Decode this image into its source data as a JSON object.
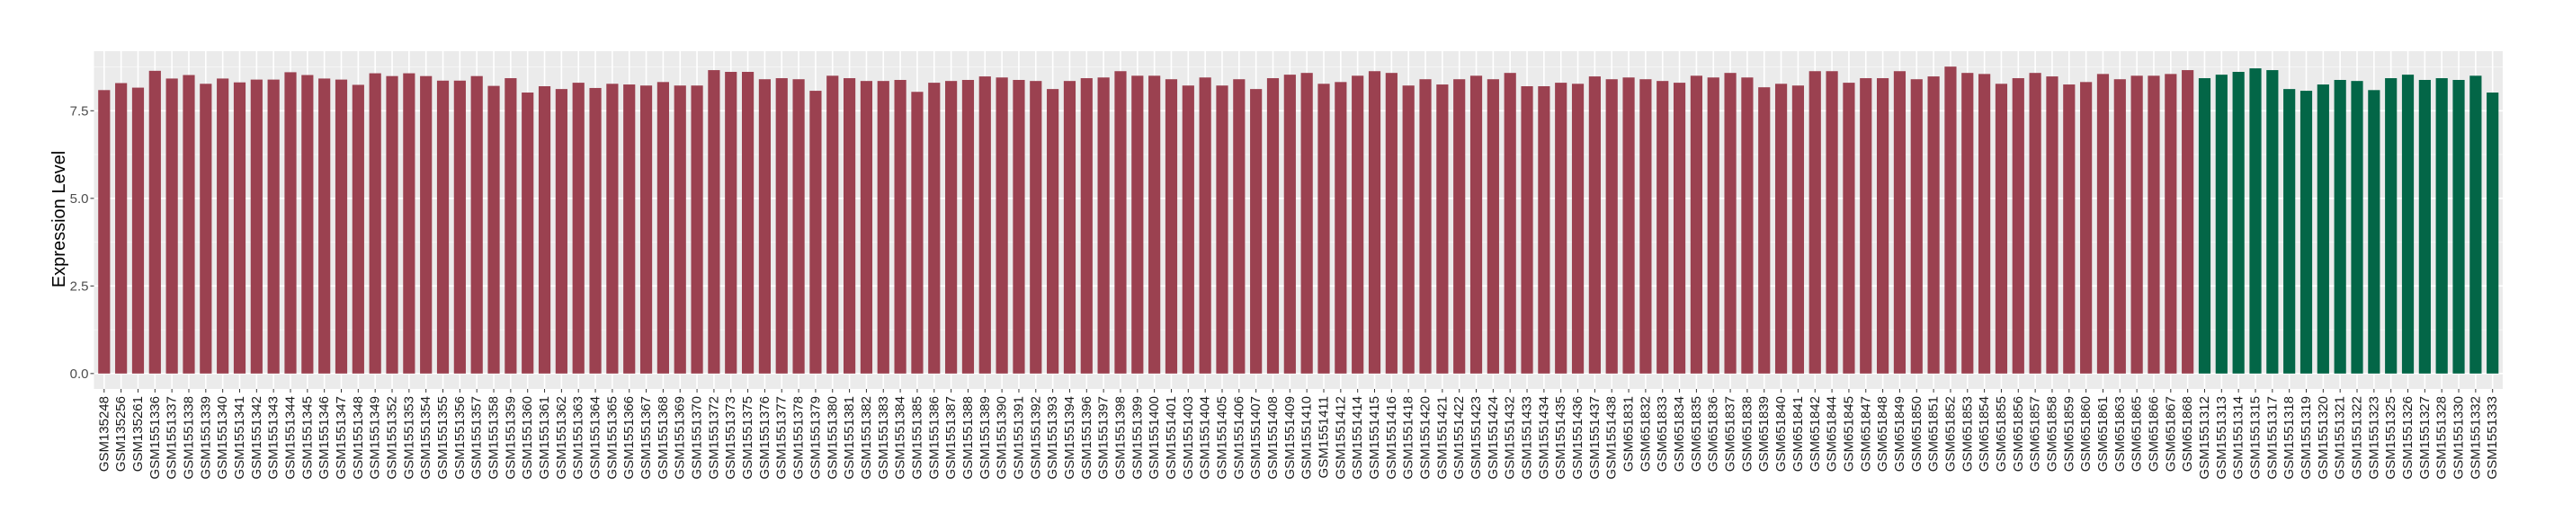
{
  "chart_data": {
    "type": "bar",
    "title": "",
    "xlabel": "",
    "ylabel": "Expression Level",
    "ylim": [
      -0.44,
      9.2
    ],
    "yticks": [
      "0.0",
      "2.5",
      "5.0",
      "7.5"
    ],
    "ytick_values": [
      0,
      2.5,
      5,
      7.5
    ],
    "grid": true,
    "legend": "none",
    "fill_colors": [
      "#9b4150",
      "#036647"
    ],
    "panel_background": "#ebebeb",
    "categories": [
      "GSM135248",
      "GSM135256",
      "GSM135261",
      "GSM1551336",
      "GSM1551337",
      "GSM1551338",
      "GSM1551339",
      "GSM1551340",
      "GSM1551341",
      "GSM1551342",
      "GSM1551343",
      "GSM1551344",
      "GSM1551345",
      "GSM1551346",
      "GSM1551347",
      "GSM1551348",
      "GSM1551349",
      "GSM1551352",
      "GSM1551353",
      "GSM1551354",
      "GSM1551355",
      "GSM1551356",
      "GSM1551357",
      "GSM1551358",
      "GSM1551359",
      "GSM1551360",
      "GSM1551361",
      "GSM1551362",
      "GSM1551363",
      "GSM1551364",
      "GSM1551365",
      "GSM1551366",
      "GSM1551367",
      "GSM1551368",
      "GSM1551369",
      "GSM1551370",
      "GSM1551372",
      "GSM1551373",
      "GSM1551375",
      "GSM1551376",
      "GSM1551377",
      "GSM1551378",
      "GSM1551379",
      "GSM1551380",
      "GSM1551381",
      "GSM1551382",
      "GSM1551383",
      "GSM1551384",
      "GSM1551385",
      "GSM1551386",
      "GSM1551387",
      "GSM1551388",
      "GSM1551389",
      "GSM1551390",
      "GSM1551391",
      "GSM1551392",
      "GSM1551393",
      "GSM1551394",
      "GSM1551396",
      "GSM1551397",
      "GSM1551398",
      "GSM1551399",
      "GSM1551400",
      "GSM1551401",
      "GSM1551403",
      "GSM1551404",
      "GSM1551405",
      "GSM1551406",
      "GSM1551407",
      "GSM1551408",
      "GSM1551409",
      "GSM1551410",
      "GSM1551411",
      "GSM1551412",
      "GSM1551414",
      "GSM1551415",
      "GSM1551416",
      "GSM1551418",
      "GSM1551420",
      "GSM1551421",
      "GSM1551422",
      "GSM1551423",
      "GSM1551424",
      "GSM1551432",
      "GSM1551433",
      "GSM1551434",
      "GSM1551435",
      "GSM1551436",
      "GSM1551437",
      "GSM1551438",
      "GSM651831",
      "GSM651832",
      "GSM651833",
      "GSM651834",
      "GSM651835",
      "GSM651836",
      "GSM651837",
      "GSM651838",
      "GSM651839",
      "GSM651840",
      "GSM651841",
      "GSM651842",
      "GSM651844",
      "GSM651845",
      "GSM651847",
      "GSM651848",
      "GSM651849",
      "GSM651850",
      "GSM651851",
      "GSM651852",
      "GSM651853",
      "GSM651854",
      "GSM651855",
      "GSM651856",
      "GSM651857",
      "GSM651858",
      "GSM651859",
      "GSM651860",
      "GSM651861",
      "GSM651863",
      "GSM651865",
      "GSM651866",
      "GSM651867",
      "GSM651868",
      "GSM1551312",
      "GSM1551313",
      "GSM1551314",
      "GSM1551315",
      "GSM1551317",
      "GSM1551318",
      "GSM1551319",
      "GSM1551320",
      "GSM1551321",
      "GSM1551322",
      "GSM1551323",
      "GSM1551325",
      "GSM1551326",
      "GSM1551327",
      "GSM1551328",
      "GSM1551330",
      "GSM1551332",
      "GSM1551333"
    ],
    "values": [
      8.09,
      8.29,
      8.16,
      8.64,
      8.42,
      8.52,
      8.27,
      8.42,
      8.31,
      8.39,
      8.39,
      8.6,
      8.52,
      8.42,
      8.39,
      8.24,
      8.57,
      8.49,
      8.57,
      8.49,
      8.36,
      8.36,
      8.49,
      8.21,
      8.43,
      8.02,
      8.2,
      8.12,
      8.3,
      8.15,
      8.27,
      8.25,
      8.22,
      8.32,
      8.22,
      8.22,
      8.66,
      8.61,
      8.61,
      8.4,
      8.43,
      8.4,
      8.07,
      8.5,
      8.43,
      8.35,
      8.35,
      8.38,
      8.04,
      8.3,
      8.35,
      8.38,
      8.48,
      8.45,
      8.38,
      8.35,
      8.12,
      8.35,
      8.43,
      8.45,
      8.63,
      8.5,
      8.5,
      8.4,
      8.22,
      8.45,
      8.22,
      8.4,
      8.12,
      8.43,
      8.53,
      8.58,
      8.27,
      8.32,
      8.5,
      8.63,
      8.58,
      8.22,
      8.4,
      8.25,
      8.4,
      8.5,
      8.4,
      8.58,
      8.2,
      8.2,
      8.3,
      8.27,
      8.48,
      8.4,
      8.45,
      8.4,
      8.35,
      8.3,
      8.5,
      8.45,
      8.58,
      8.45,
      8.17,
      8.27,
      8.22,
      8.63,
      8.63,
      8.3,
      8.43,
      8.43,
      8.63,
      8.4,
      8.48,
      8.76,
      8.58,
      8.55,
      8.27,
      8.43,
      8.58,
      8.48,
      8.25,
      8.32,
      8.55,
      8.4,
      8.5,
      8.5,
      8.55,
      8.66,
      8.43,
      8.53,
      8.61,
      8.71,
      8.66,
      8.12,
      8.07,
      8.25,
      8.38,
      8.35,
      8.09,
      8.43,
      8.53,
      8.38,
      8.43,
      8.38,
      8.5,
      8.02
    ],
    "color_group": [
      0,
      0,
      0,
      0,
      0,
      0,
      0,
      0,
      0,
      0,
      0,
      0,
      0,
      0,
      0,
      0,
      0,
      0,
      0,
      0,
      0,
      0,
      0,
      0,
      0,
      0,
      0,
      0,
      0,
      0,
      0,
      0,
      0,
      0,
      0,
      0,
      0,
      0,
      0,
      0,
      0,
      0,
      0,
      0,
      0,
      0,
      0,
      0,
      0,
      0,
      0,
      0,
      0,
      0,
      0,
      0,
      0,
      0,
      0,
      0,
      0,
      0,
      0,
      0,
      0,
      0,
      0,
      0,
      0,
      0,
      0,
      0,
      0,
      0,
      0,
      0,
      0,
      0,
      0,
      0,
      0,
      0,
      0,
      0,
      0,
      0,
      0,
      0,
      0,
      0,
      0,
      0,
      0,
      0,
      0,
      0,
      0,
      0,
      0,
      0,
      0,
      0,
      0,
      0,
      0,
      0,
      0,
      0,
      0,
      0,
      0,
      0,
      0,
      0,
      0,
      0,
      0,
      0,
      0,
      0,
      0,
      0,
      0,
      0,
      1,
      1,
      1,
      1,
      1,
      1,
      1,
      1,
      1,
      1,
      1,
      1,
      1,
      1,
      1,
      1,
      1,
      1
    ]
  }
}
